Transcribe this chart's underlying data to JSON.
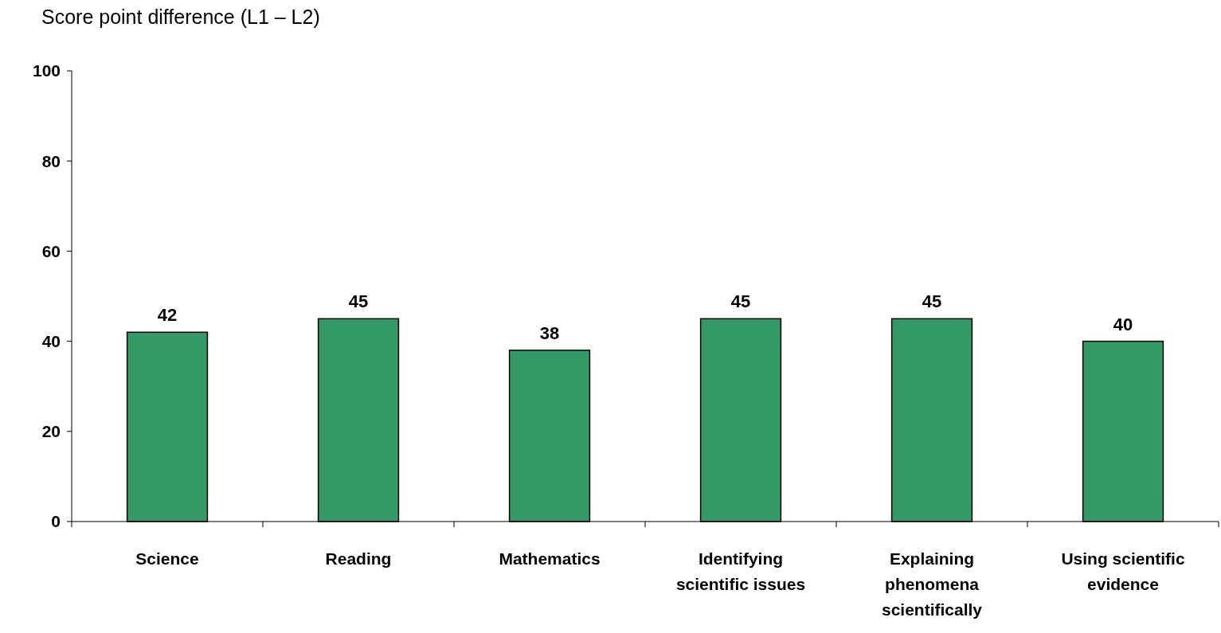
{
  "chart_data": {
    "type": "bar",
    "title": "Score point difference (L1 – L2)",
    "categories": [
      "Science",
      "Reading",
      "Mathematics",
      "Identifying scientific issues",
      "Explaining phenomena scientifically",
      "Using scientific evidence"
    ],
    "values": [
      42,
      45,
      38,
      45,
      45,
      40
    ],
    "color": "#339966",
    "ylim": [
      0,
      100
    ],
    "yticks": [
      0,
      20,
      40,
      60,
      80,
      100
    ],
    "grid": false,
    "data_labels": true
  }
}
